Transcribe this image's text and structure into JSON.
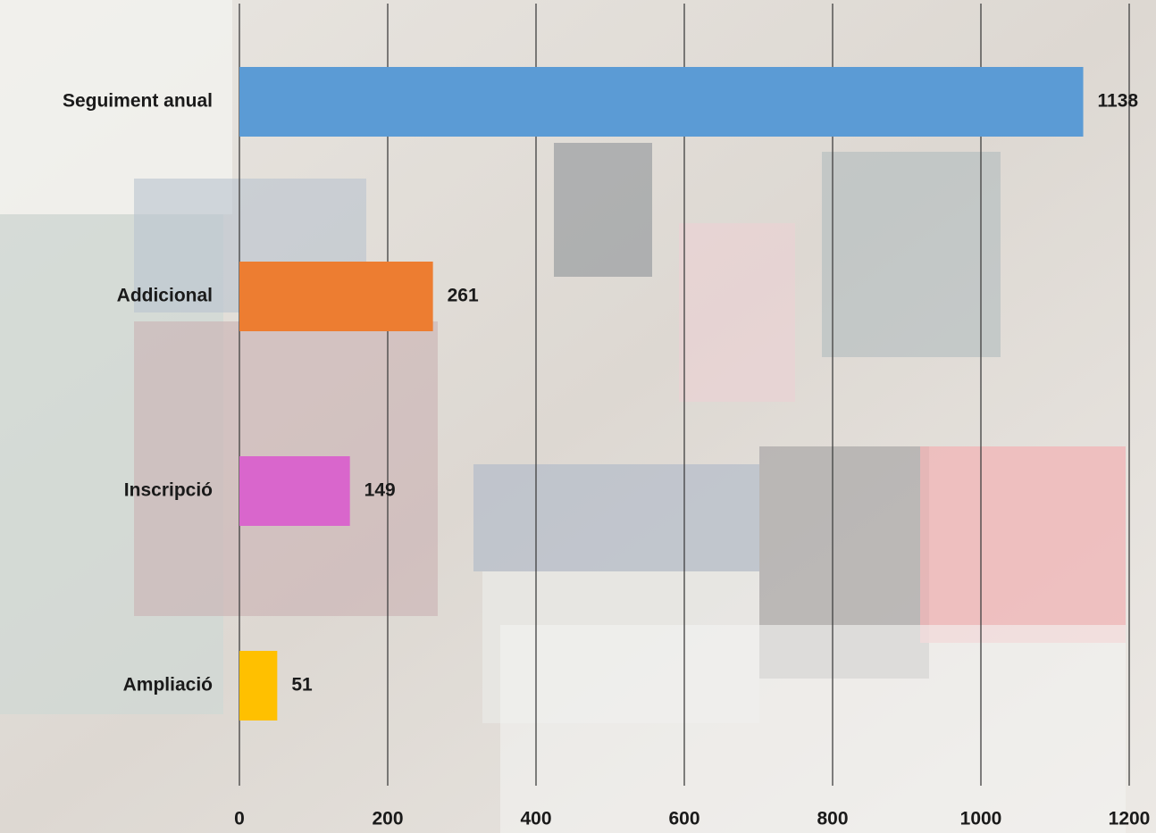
{
  "chart_data": {
    "type": "hbar",
    "categories": [
      "Seguiment anual",
      "Addicional",
      "Inscripció",
      "Ampliació"
    ],
    "values": [
      1138,
      261,
      149,
      51
    ],
    "colors": [
      "#5b9bd5",
      "#ed7d31",
      "#d966cc",
      "#ffc000"
    ],
    "xlim": [
      0,
      1200
    ],
    "xticks": [
      0,
      200,
      400,
      600,
      800,
      1000,
      1200
    ],
    "grid": true
  }
}
